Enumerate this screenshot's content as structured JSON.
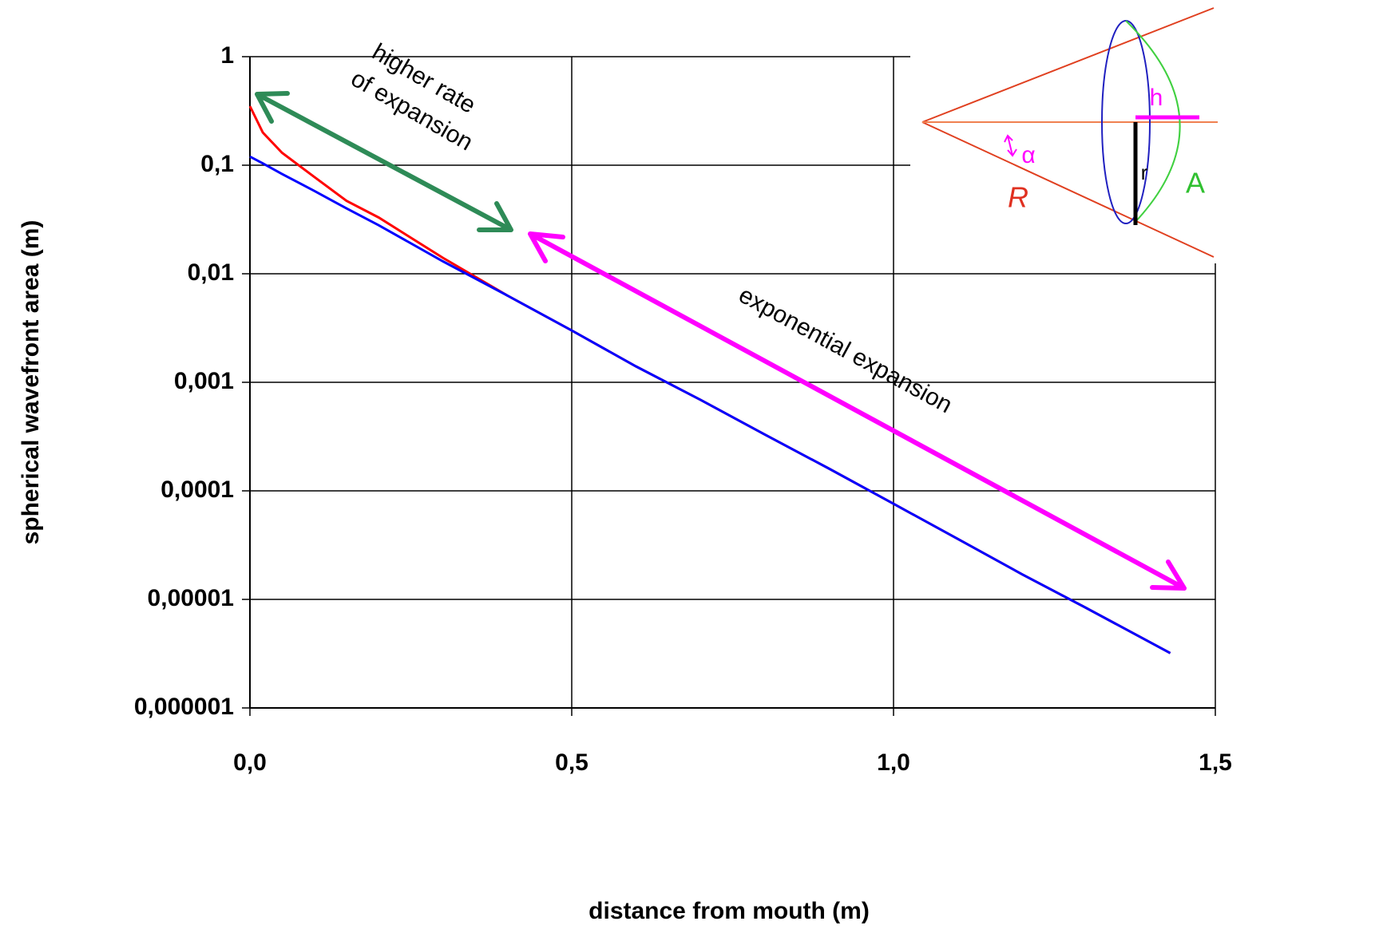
{
  "chart_data": {
    "type": "line",
    "x_label": "distance from mouth (m)",
    "y_label": "spherical wavefront area (m)",
    "log_y": true,
    "grid": true,
    "xlim": [
      0,
      1.5
    ],
    "ylim": [
      1e-06,
      1
    ],
    "xticks": [
      {
        "value": 0,
        "label": "0,0"
      },
      {
        "value": 0.5,
        "label": "0,5"
      },
      {
        "value": 1,
        "label": "1,0"
      },
      {
        "value": 1.5,
        "label": "1,5"
      }
    ],
    "yticks": [
      {
        "value": 1e-06,
        "label": "0,000001"
      },
      {
        "value": 1e-05,
        "label": "0,00001"
      },
      {
        "value": 0.0001,
        "label": "0,0001"
      },
      {
        "value": 0.001,
        "label": "0,001"
      },
      {
        "value": 0.01,
        "label": "0,01"
      },
      {
        "value": 0.1,
        "label": "0,1"
      },
      1
    ],
    "x": [
      0,
      0.02,
      0.05,
      0.1,
      0.15,
      0.2,
      0.3,
      0.4,
      0.5,
      0.6,
      0.7,
      0.8,
      0.9,
      1.0,
      1.1,
      1.2,
      1.3,
      1.43
    ],
    "series": [
      {
        "color": "#ff0000",
        "values": [
          0.35,
          0.2,
          0.13,
          0.078,
          0.047,
          0.033,
          0.014,
          0.0063,
          0.003,
          0.0014,
          0.00069,
          0.00033,
          0.00016,
          7.6e-05,
          3.6e-05,
          1.7e-05,
          8.3e-06,
          3.2e-06
        ]
      },
      {
        "color": "#0000ff",
        "values": [
          0.12,
          0.104,
          0.083,
          0.058,
          0.04,
          0.028,
          0.013,
          0.0063,
          0.003,
          0.0014,
          0.00069,
          0.00033,
          0.00016,
          7.6e-05,
          3.6e-05,
          1.7e-05,
          8.3e-06,
          3.2e-06
        ]
      }
    ],
    "annotations": [
      "higher rate",
      "of expansion",
      "exponential expansion"
    ],
    "inset_labels": [
      "h",
      "α",
      "r",
      "R",
      "A"
    ]
  }
}
